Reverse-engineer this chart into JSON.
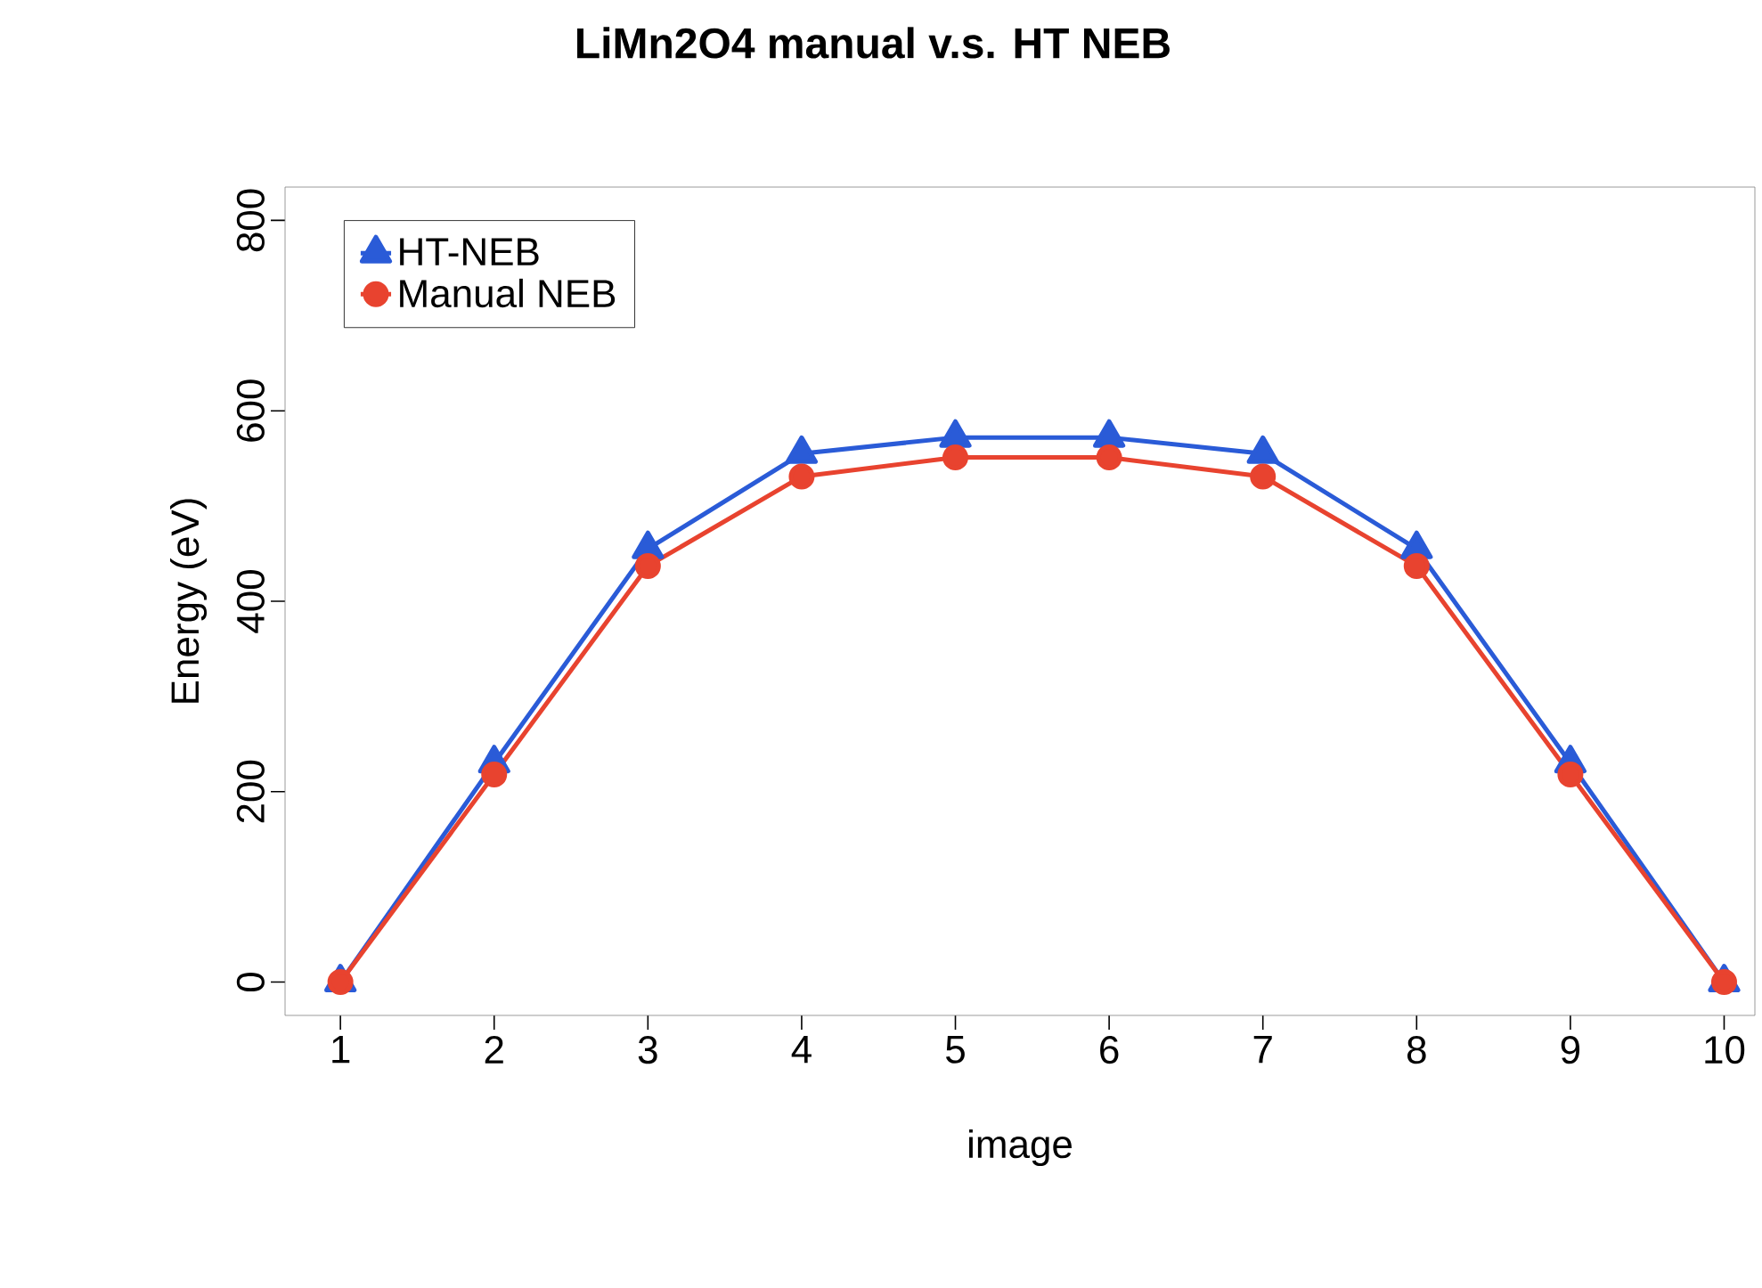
{
  "chart_data": {
    "type": "line",
    "title": "LiMn2O4 manual v.s. HT NEB",
    "xlabel": "image",
    "ylabel": "Energy (eV)",
    "x": [
      1,
      2,
      3,
      4,
      5,
      6,
      7,
      8,
      9,
      10
    ],
    "series": [
      {
        "name": "HT-NEB",
        "color": "#2a5bd7",
        "marker": "triangle",
        "values": [
          0,
          230,
          455,
          555,
          572,
          572,
          555,
          455,
          230,
          0
        ]
      },
      {
        "name": "Manual NEB",
        "color": "#e8432f",
        "marker": "circle",
        "values": [
          0,
          218,
          437,
          531,
          551,
          551,
          531,
          437,
          218,
          0
        ]
      }
    ],
    "xlim": [
      0.64,
      10.2
    ],
    "ylim": [
      -35,
      835
    ],
    "xticks": [
      1,
      2,
      3,
      4,
      5,
      6,
      7,
      8,
      9,
      10
    ],
    "yticks": [
      0,
      200,
      400,
      600,
      800
    ],
    "grid": false,
    "legend": "top left",
    "line_style": "solid"
  }
}
